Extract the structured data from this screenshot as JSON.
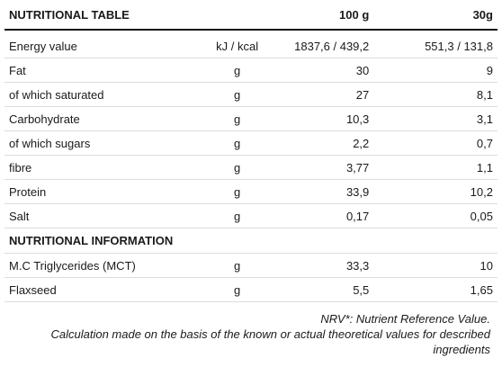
{
  "header": {
    "title": "NUTRITIONAL TABLE",
    "col_100g": "100 g",
    "col_30g": "30g"
  },
  "rows": [
    {
      "name": "Energy value",
      "unit": "kJ / kcal",
      "per100": "1837,6 / 439,2",
      "per30": "551,3 / 131,8"
    },
    {
      "name": "Fat",
      "unit": "g",
      "per100": "30",
      "per30": "9"
    },
    {
      "name": "of which saturated",
      "unit": "g",
      "per100": "27",
      "per30": "8,1"
    },
    {
      "name": "Carbohydrate",
      "unit": "g",
      "per100": "10,3",
      "per30": "3,1"
    },
    {
      "name": "of which sugars",
      "unit": "g",
      "per100": "2,2",
      "per30": "0,7"
    },
    {
      "name": "fibre",
      "unit": "g",
      "per100": "3,77",
      "per30": "1,1"
    },
    {
      "name": "Protein",
      "unit": "g",
      "per100": "33,9",
      "per30": "10,2"
    },
    {
      "name": "Salt",
      "unit": "g",
      "per100": "0,17",
      "per30": "0,05"
    }
  ],
  "info_section": {
    "title": "NUTRITIONAL INFORMATION"
  },
  "info_rows": [
    {
      "name": "M.C Triglycerides (MCT)",
      "unit": "g",
      "per100": "33,3",
      "per30": "10"
    },
    {
      "name": "Flaxseed",
      "unit": "g",
      "per100": "5,5",
      "per30": "1,65"
    }
  ],
  "notes": {
    "nrv": "NRV*: Nutrient Reference Value.",
    "calc_line1": "Calculation made on the basis of the known or actual theoretical values for described",
    "calc_line2": "ingredients"
  }
}
